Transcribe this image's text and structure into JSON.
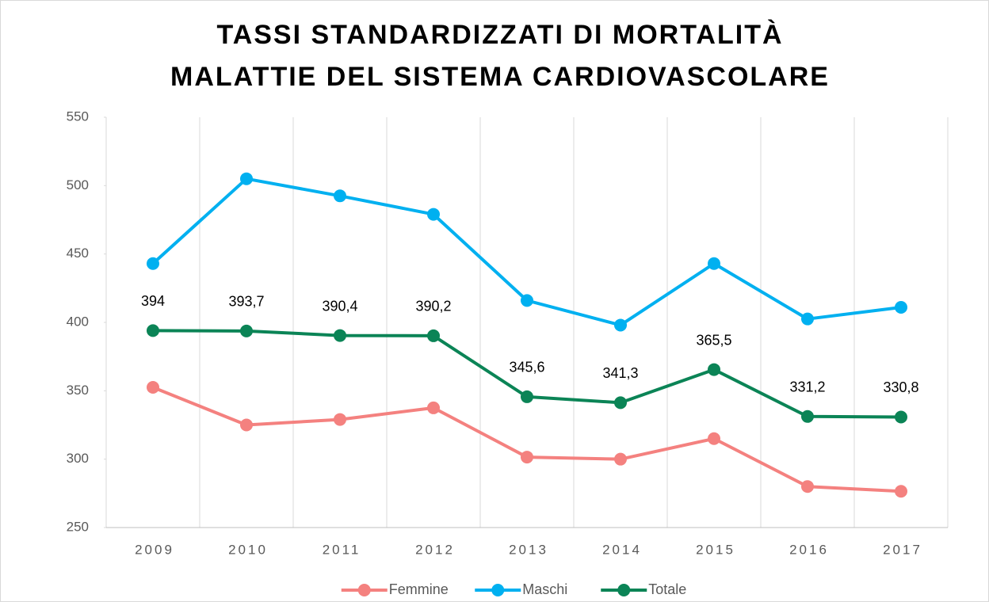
{
  "chart_data": {
    "type": "line",
    "title": [
      "TASSI STANDARDIZZATI DI MORTALITÀ",
      "MALATTIE DEL SISTEMA CARDIOVASCOLARE"
    ],
    "categories": [
      "2009",
      "2010",
      "2011",
      "2012",
      "2013",
      "2014",
      "2015",
      "2016",
      "2017"
    ],
    "series": [
      {
        "name": "Femmine",
        "color": "#f4817f",
        "values": [
          352.5,
          325,
          329,
          337.5,
          301.5,
          300,
          315,
          280,
          276.5
        ]
      },
      {
        "name": "Maschi",
        "color": "#00b0f0",
        "values": [
          443,
          505,
          492.5,
          479,
          416,
          398,
          443,
          402.5,
          411
        ]
      },
      {
        "name": "Totale",
        "color": "#0b8456",
        "values": [
          394,
          393.7,
          390.4,
          390.2,
          345.6,
          341.3,
          365.5,
          331.2,
          330.8
        ],
        "value_labels": [
          "394",
          "393,7",
          "390,4",
          "390,2",
          "345,6",
          "341,3",
          "365,5",
          "331,2",
          "330,8"
        ]
      }
    ],
    "ylim": [
      250,
      550
    ],
    "yticks": [
      250,
      300,
      350,
      400,
      450,
      500,
      550
    ],
    "legend": "bottom"
  }
}
